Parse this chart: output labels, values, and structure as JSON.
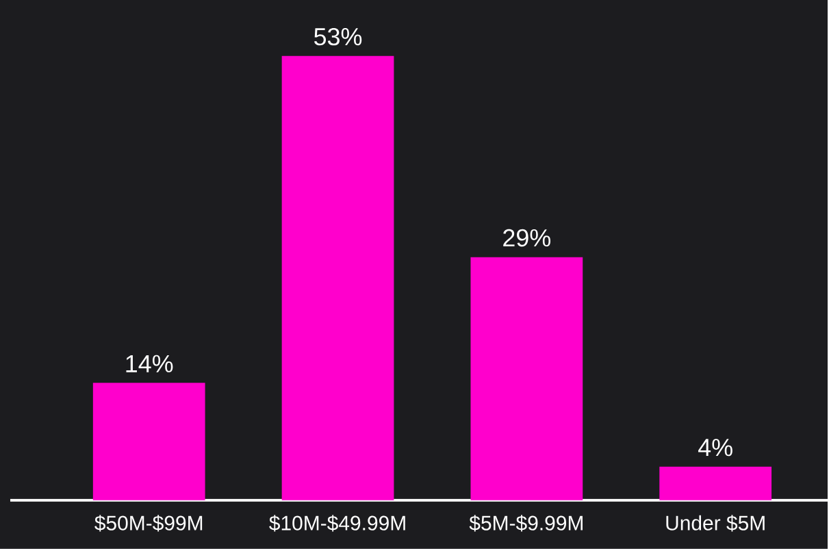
{
  "chart_data": {
    "type": "bar",
    "categories": [
      "$50M-$99M",
      "$10M-$49.99M",
      "$5M-$9.99M",
      "Under $5M"
    ],
    "values": [
      14,
      53,
      29,
      4
    ],
    "value_labels": [
      "14%",
      "53%",
      "29%",
      "4%"
    ],
    "color": "#ff00cc"
  }
}
